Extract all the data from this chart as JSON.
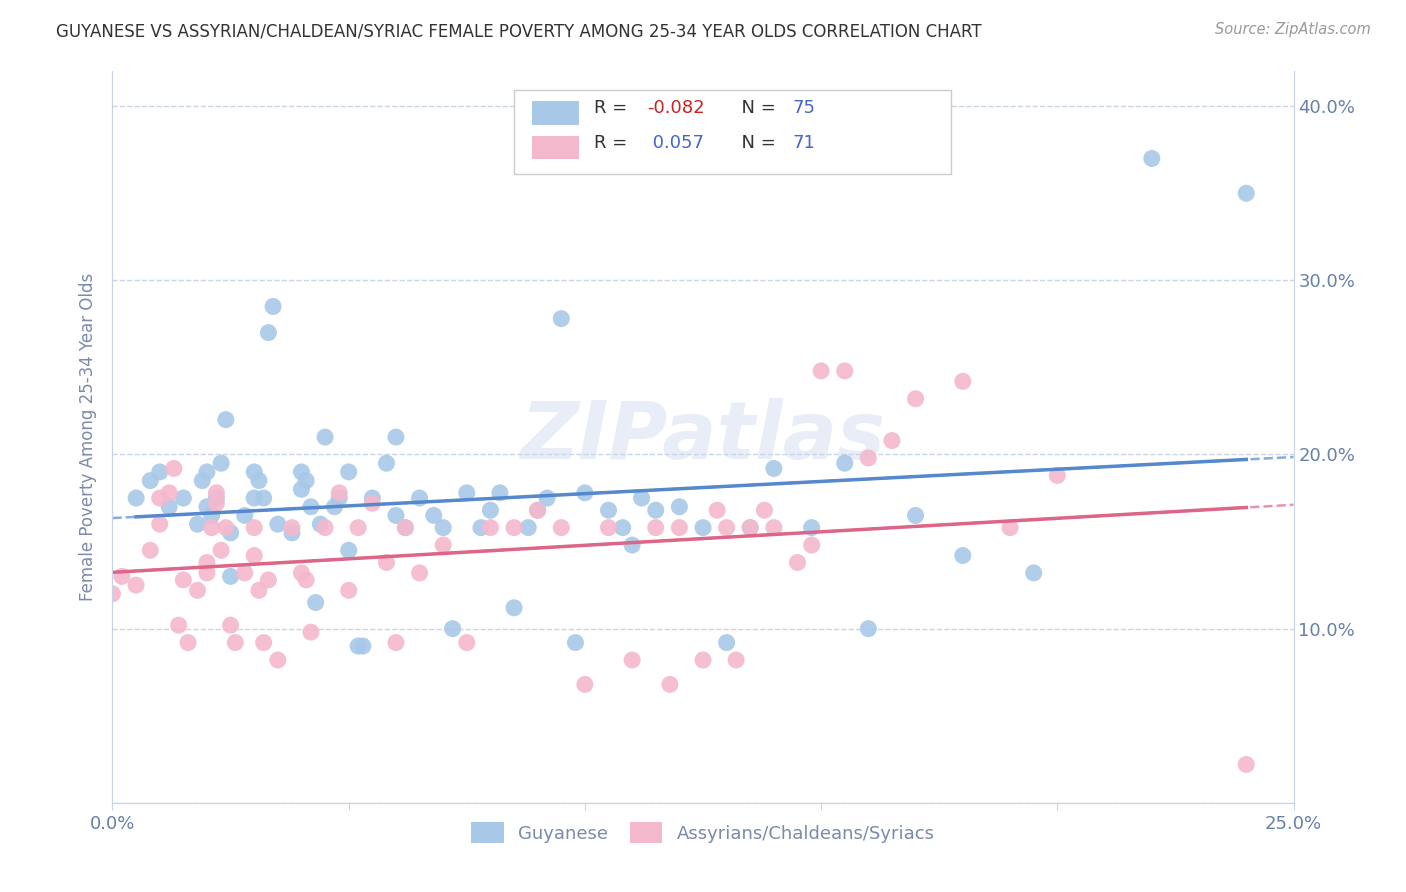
{
  "title": "GUYANESE VS ASSYRIAN/CHALDEAN/SYRIAC FEMALE POVERTY AMONG 25-34 YEAR OLDS CORRELATION CHART",
  "source": "Source: ZipAtlas.com",
  "ylabel": "Female Poverty Among 25-34 Year Olds",
  "xlim": [
    0.0,
    0.25
  ],
  "ylim": [
    0.0,
    0.42
  ],
  "xticks": [
    0.0,
    0.05,
    0.1,
    0.15,
    0.2,
    0.25
  ],
  "xtick_labels": [
    "0.0%",
    "",
    "",
    "",
    "",
    "25.0%"
  ],
  "yticks": [
    0.0,
    0.1,
    0.2,
    0.3,
    0.4
  ],
  "ytick_right_labels": [
    "",
    "10.0%",
    "20.0%",
    "30.0%",
    "40.0%"
  ],
  "guyanese_color": "#a8c8e8",
  "assyrian_color": "#f4b8cc",
  "guyanese_line_color": "#5588cc",
  "assyrian_line_color": "#dd6688",
  "legend_R_guyanese": "-0.082",
  "legend_N_guyanese": "75",
  "legend_R_assyrian": "0.057",
  "legend_N_assyrian": "71",
  "watermark_text": "ZIPatlas",
  "background_color": "#ffffff",
  "grid_color": "#c8d4e8",
  "title_color": "#333333",
  "source_color": "#999999",
  "label_color": "#7a8aaa",
  "tick_label_color": "#6680aa",
  "legend_R_color": "#4466cc",
  "legend_N_color": "#4466cc",
  "guyanese_x": [
    0.005,
    0.008,
    0.01,
    0.012,
    0.015,
    0.018,
    0.019,
    0.02,
    0.02,
    0.021,
    0.022,
    0.023,
    0.024,
    0.025,
    0.025,
    0.028,
    0.03,
    0.03,
    0.031,
    0.032,
    0.033,
    0.034,
    0.035,
    0.038,
    0.04,
    0.04,
    0.041,
    0.042,
    0.043,
    0.044,
    0.045,
    0.047,
    0.048,
    0.05,
    0.05,
    0.052,
    0.053,
    0.055,
    0.058,
    0.06,
    0.06,
    0.062,
    0.065,
    0.068,
    0.07,
    0.072,
    0.075,
    0.078,
    0.08,
    0.082,
    0.085,
    0.088,
    0.09,
    0.092,
    0.095,
    0.098,
    0.1,
    0.105,
    0.108,
    0.11,
    0.112,
    0.115,
    0.12,
    0.125,
    0.13,
    0.135,
    0.14,
    0.148,
    0.155,
    0.16,
    0.17,
    0.18,
    0.195,
    0.22,
    0.24
  ],
  "guyanese_y": [
    0.175,
    0.185,
    0.19,
    0.17,
    0.175,
    0.16,
    0.185,
    0.17,
    0.19,
    0.165,
    0.175,
    0.195,
    0.22,
    0.155,
    0.13,
    0.165,
    0.175,
    0.19,
    0.185,
    0.175,
    0.27,
    0.285,
    0.16,
    0.155,
    0.18,
    0.19,
    0.185,
    0.17,
    0.115,
    0.16,
    0.21,
    0.17,
    0.175,
    0.19,
    0.145,
    0.09,
    0.09,
    0.175,
    0.195,
    0.21,
    0.165,
    0.158,
    0.175,
    0.165,
    0.158,
    0.1,
    0.178,
    0.158,
    0.168,
    0.178,
    0.112,
    0.158,
    0.168,
    0.175,
    0.278,
    0.092,
    0.178,
    0.168,
    0.158,
    0.148,
    0.175,
    0.168,
    0.17,
    0.158,
    0.092,
    0.158,
    0.192,
    0.158,
    0.195,
    0.1,
    0.165,
    0.142,
    0.132,
    0.37,
    0.35
  ],
  "assyrian_x": [
    0.0,
    0.002,
    0.005,
    0.008,
    0.01,
    0.01,
    0.012,
    0.013,
    0.014,
    0.015,
    0.016,
    0.018,
    0.02,
    0.02,
    0.021,
    0.022,
    0.022,
    0.023,
    0.024,
    0.025,
    0.026,
    0.028,
    0.03,
    0.03,
    0.031,
    0.032,
    0.033,
    0.035,
    0.038,
    0.04,
    0.041,
    0.042,
    0.045,
    0.048,
    0.05,
    0.052,
    0.055,
    0.058,
    0.06,
    0.062,
    0.065,
    0.07,
    0.075,
    0.08,
    0.085,
    0.09,
    0.095,
    0.1,
    0.105,
    0.11,
    0.115,
    0.118,
    0.12,
    0.125,
    0.128,
    0.13,
    0.132,
    0.135,
    0.138,
    0.14,
    0.145,
    0.148,
    0.15,
    0.155,
    0.16,
    0.165,
    0.17,
    0.18,
    0.19,
    0.2,
    0.24
  ],
  "assyrian_y": [
    0.12,
    0.13,
    0.125,
    0.145,
    0.16,
    0.175,
    0.178,
    0.192,
    0.102,
    0.128,
    0.092,
    0.122,
    0.132,
    0.138,
    0.158,
    0.178,
    0.172,
    0.145,
    0.158,
    0.102,
    0.092,
    0.132,
    0.142,
    0.158,
    0.122,
    0.092,
    0.128,
    0.082,
    0.158,
    0.132,
    0.128,
    0.098,
    0.158,
    0.178,
    0.122,
    0.158,
    0.172,
    0.138,
    0.092,
    0.158,
    0.132,
    0.148,
    0.092,
    0.158,
    0.158,
    0.168,
    0.158,
    0.068,
    0.158,
    0.082,
    0.158,
    0.068,
    0.158,
    0.082,
    0.168,
    0.158,
    0.082,
    0.158,
    0.168,
    0.158,
    0.138,
    0.148,
    0.248,
    0.248,
    0.198,
    0.208,
    0.232,
    0.242,
    0.158,
    0.188,
    0.022
  ]
}
